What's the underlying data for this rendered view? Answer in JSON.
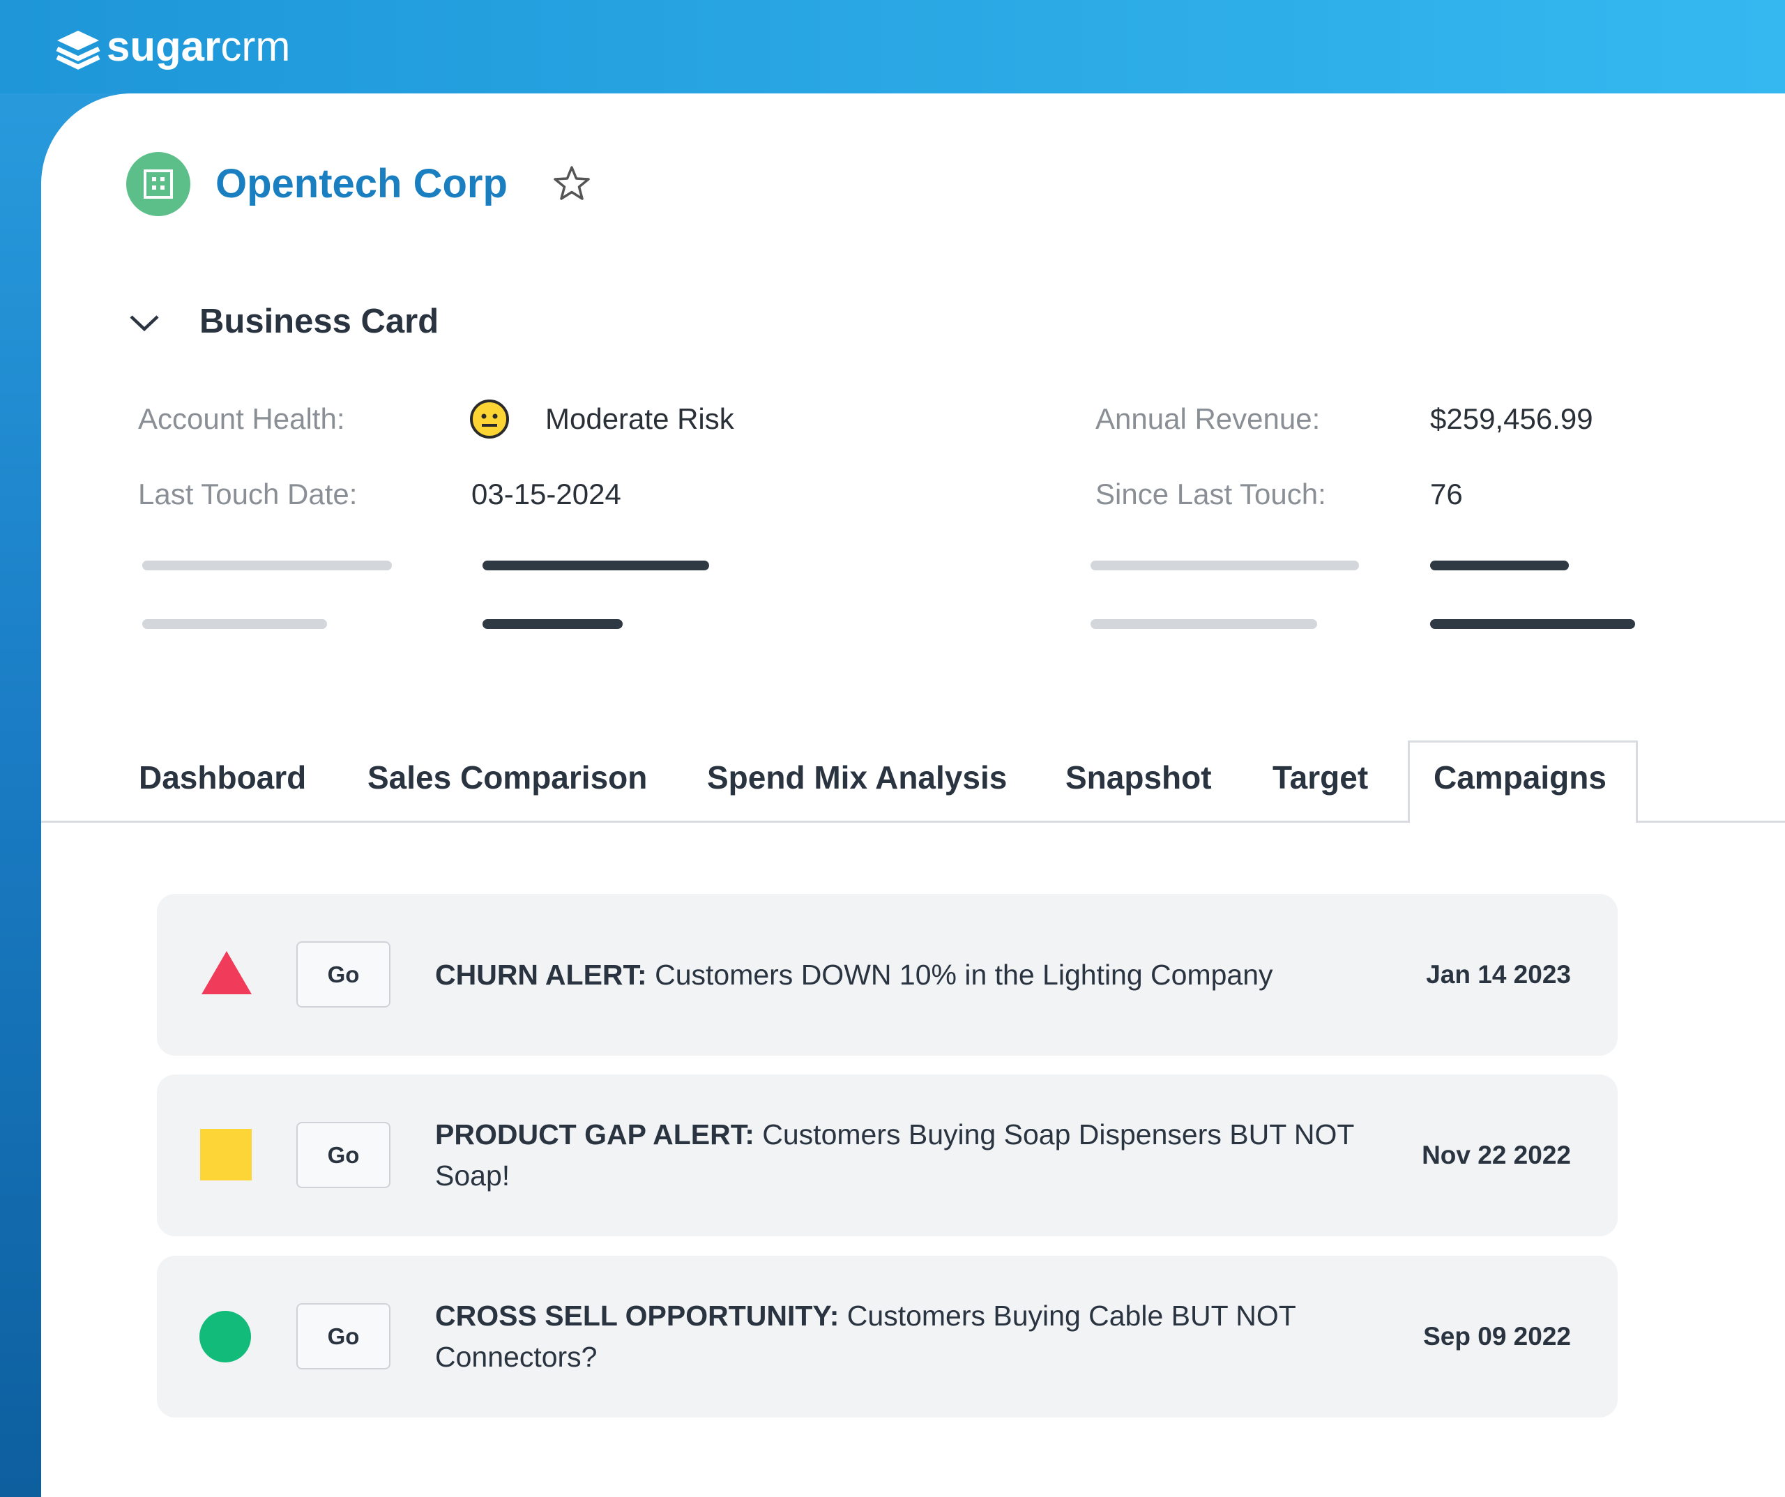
{
  "header": {
    "logo_bold": "sugar",
    "logo_light": "crm"
  },
  "record": {
    "title": "Opentech Corp"
  },
  "business_card": {
    "heading": "Business Card",
    "fields": [
      {
        "label": "Account Health:",
        "value": "Moderate Risk"
      },
      {
        "label": "Last Touch Date:",
        "value": "03-15-2024"
      },
      {
        "label": "Annual Revenue:",
        "value": "$259,456.99"
      },
      {
        "label": "Since Last Touch:",
        "value": "76"
      }
    ]
  },
  "tabs": [
    "Dashboard",
    "Sales Comparison",
    "Spend Mix Analysis",
    "Snapshot",
    "Target",
    "Campaigns"
  ],
  "campaigns": [
    {
      "button": "Go",
      "title": "CHURN ALERT:",
      "text": "Customers DOWN 10% in the Lighting Company",
      "date": "Jan 14 2023"
    },
    {
      "button": "Go",
      "title": "PRODUCT GAP ALERT:",
      "text": "Customers Buying Soap Dispensers BUT NOT Soap!",
      "date": "Nov 22 2022"
    },
    {
      "button": "Go",
      "title": "CROSS SELL OPPORTUNITY:",
      "text": "Customers Buying Cable BUT NOT Connectors?",
      "date": "Sep 09 2022"
    }
  ]
}
